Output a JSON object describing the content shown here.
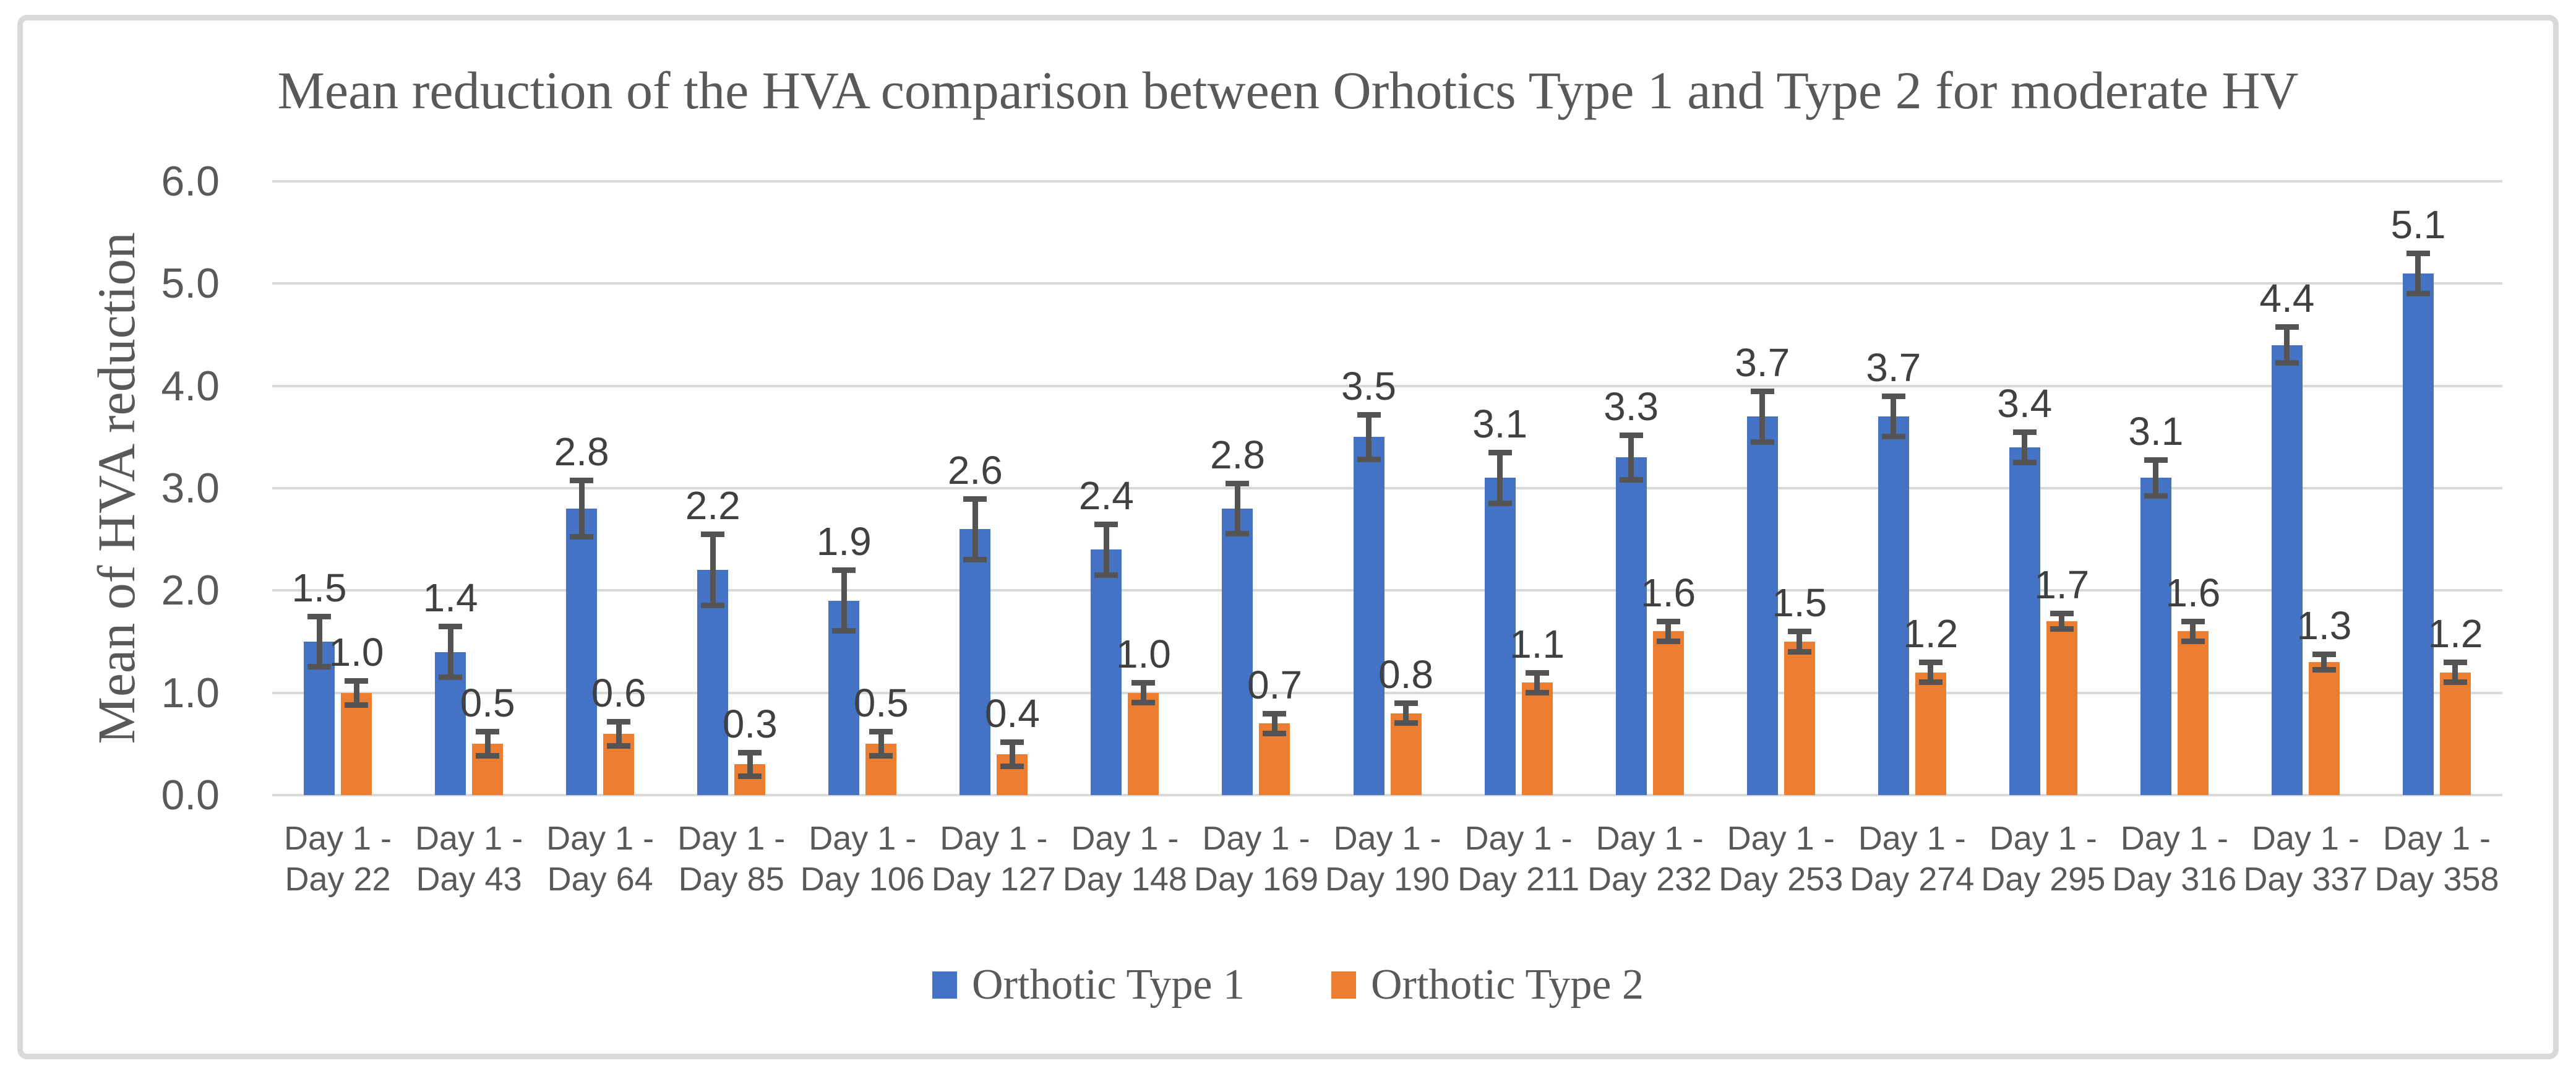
{
  "colors": {
    "series1": "#4472C4",
    "series2": "#ED7D31",
    "gridline": "#D9D9D9",
    "frame_border": "#D9D9D9",
    "error_bar": "#545454",
    "data_label": "#404040",
    "axis_text": "#595959"
  },
  "chart_data": {
    "type": "bar",
    "title": "Mean reduction of the HVA comparison between Orhotics Type 1 and Type 2 for moderate HV",
    "ylabel": "Mean of HVA reduction",
    "xlabel": "",
    "ylim": [
      0,
      6
    ],
    "ytick_step": 1.0,
    "ytick_labels": [
      "0.0",
      "1.0",
      "2.0",
      "3.0",
      "4.0",
      "5.0",
      "6.0"
    ],
    "grid": true,
    "legend_position": "bottom",
    "x_labels": [
      {
        "line1": "Day 1 -",
        "line2": "Day 22"
      },
      {
        "line1": "Day 1 -",
        "line2": "Day 43"
      },
      {
        "line1": "Day 1 -",
        "line2": "Day 64"
      },
      {
        "line1": "Day 1 -",
        "line2": "Day 85"
      },
      {
        "line1": "Day 1 -",
        "line2": "Day 106"
      },
      {
        "line1": "Day 1 -",
        "line2": "Day 127"
      },
      {
        "line1": "Day 1 -",
        "line2": "Day 148"
      },
      {
        "line1": "Day 1 -",
        "line2": "Day 169"
      },
      {
        "line1": "Day 1 -",
        "line2": "Day 190"
      },
      {
        "line1": "Day 1 -",
        "line2": "Day 211"
      },
      {
        "line1": "Day 1 -",
        "line2": "Day 232"
      },
      {
        "line1": "Day 1 -",
        "line2": "Day 253"
      },
      {
        "line1": "Day 1 -",
        "line2": "Day 274"
      },
      {
        "line1": "Day 1 -",
        "line2": "Day 295"
      },
      {
        "line1": "Day 1 -",
        "line2": "Day 316"
      },
      {
        "line1": "Day 1 -",
        "line2": "Day 337"
      },
      {
        "line1": "Day 1 -",
        "line2": "Day 358"
      }
    ],
    "series": [
      {
        "name": "Orthotic Type 1",
        "color": "#4472C4",
        "values": [
          1.5,
          1.4,
          2.8,
          2.2,
          1.9,
          2.6,
          2.4,
          2.8,
          3.5,
          3.1,
          3.3,
          3.7,
          3.7,
          3.4,
          3.1,
          4.4,
          5.1
        ],
        "errors": [
          0.25,
          0.25,
          0.28,
          0.35,
          0.3,
          0.3,
          0.25,
          0.25,
          0.22,
          0.25,
          0.22,
          0.25,
          0.2,
          0.15,
          0.18,
          0.18,
          0.2
        ]
      },
      {
        "name": "Orthotic Type 2",
        "color": "#ED7D31",
        "values": [
          1.0,
          0.5,
          0.6,
          0.3,
          0.5,
          0.4,
          1.0,
          0.7,
          0.8,
          1.1,
          1.6,
          1.5,
          1.2,
          1.7,
          1.6,
          1.3,
          1.2
        ],
        "errors": [
          0.12,
          0.12,
          0.12,
          0.12,
          0.12,
          0.12,
          0.1,
          0.1,
          0.1,
          0.1,
          0.1,
          0.1,
          0.1,
          0.08,
          0.1,
          0.08,
          0.1
        ]
      }
    ]
  }
}
